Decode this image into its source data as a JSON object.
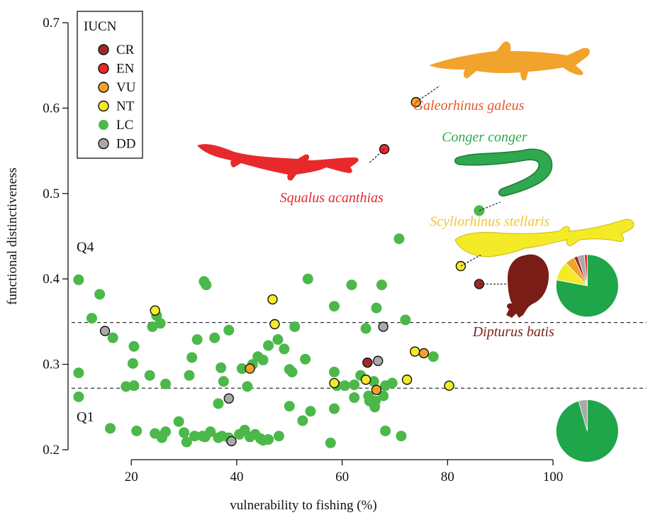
{
  "chart_data": {
    "type": "scatter",
    "xlabel": "vulnerability to fishing (%)",
    "ylabel": "functional distinctiveness",
    "xlim": [
      8,
      100
    ],
    "ylim": [
      0.19,
      0.71
    ],
    "xticks": [
      20,
      40,
      60,
      80,
      100
    ],
    "yticks": [
      0.2,
      0.3,
      0.4,
      0.5,
      0.6,
      0.7
    ],
    "xtick_labels": [
      "20",
      "40",
      "60",
      "80",
      "100"
    ],
    "ytick_labels": [
      "0.2",
      "0.3",
      "0.4",
      "0.5",
      "0.6",
      "0.7"
    ],
    "thresholds": [
      0.349,
      0.272
    ],
    "quadrant_labels": [
      {
        "text": "Q4",
        "y": 0.432
      },
      {
        "text": "Q1",
        "y": 0.233
      }
    ],
    "legend": {
      "title": "IUCN",
      "entries": [
        {
          "label": "CR",
          "color": "#9e2a25",
          "outline": true
        },
        {
          "label": "EN",
          "color": "#e8292c",
          "outline": true
        },
        {
          "label": "VU",
          "color": "#f2a32b",
          "outline": true
        },
        {
          "label": "NT",
          "color": "#f4ea27",
          "outline": true
        },
        {
          "label": "LC",
          "color": "#4bb849",
          "outline": false
        },
        {
          "label": "DD",
          "color": "#a9a9a9",
          "outline": true
        }
      ]
    },
    "colors": {
      "CR": "#9e2a25",
      "EN": "#e8292c",
      "VU": "#f2a32b",
      "NT": "#f4ea27",
      "LC": "#4bb849",
      "DD": "#a9a9a9"
    },
    "series": [
      {
        "name": "CR",
        "points": [
          [
            86,
            0.394
          ],
          [
            64.8,
            0.302
          ]
        ]
      },
      {
        "name": "EN",
        "points": [
          [
            68,
            0.552
          ]
        ]
      },
      {
        "name": "VU",
        "points": [
          [
            74,
            0.607
          ],
          [
            42.5,
            0.295
          ],
          [
            66.5,
            0.27
          ],
          [
            75.5,
            0.313
          ]
        ]
      },
      {
        "name": "NT",
        "points": [
          [
            82.5,
            0.415
          ],
          [
            24.5,
            0.363
          ],
          [
            46.8,
            0.376
          ],
          [
            47.2,
            0.347
          ],
          [
            58.5,
            0.278
          ],
          [
            64.5,
            0.282
          ],
          [
            73.8,
            0.315
          ],
          [
            72.3,
            0.282
          ],
          [
            80.3,
            0.275
          ]
        ]
      },
      {
        "name": "LC",
        "points": [
          [
            86,
            0.48
          ],
          [
            70.8,
            0.447
          ],
          [
            10,
            0.399
          ],
          [
            14,
            0.382
          ],
          [
            12.5,
            0.354
          ],
          [
            16.5,
            0.331
          ],
          [
            10,
            0.29
          ],
          [
            10,
            0.262
          ],
          [
            20.5,
            0.321
          ],
          [
            20.3,
            0.301
          ],
          [
            19,
            0.274
          ],
          [
            20.5,
            0.275
          ],
          [
            23.5,
            0.287
          ],
          [
            24.8,
            0.357
          ],
          [
            25.5,
            0.348
          ],
          [
            24,
            0.344
          ],
          [
            26.5,
            0.277
          ],
          [
            31.5,
            0.308
          ],
          [
            32.5,
            0.329
          ],
          [
            31,
            0.287
          ],
          [
            33.8,
            0.397
          ],
          [
            34.2,
            0.393
          ],
          [
            35.8,
            0.331
          ],
          [
            36.5,
            0.254
          ],
          [
            37,
            0.296
          ],
          [
            37.5,
            0.28
          ],
          [
            38.5,
            0.34
          ],
          [
            41,
            0.295
          ],
          [
            42,
            0.274
          ],
          [
            43,
            0.3
          ],
          [
            44,
            0.309
          ],
          [
            45,
            0.305
          ],
          [
            46,
            0.322
          ],
          [
            47.8,
            0.329
          ],
          [
            49,
            0.318
          ],
          [
            50,
            0.294
          ],
          [
            50.5,
            0.291
          ],
          [
            51,
            0.344
          ],
          [
            50,
            0.251
          ],
          [
            53,
            0.306
          ],
          [
            53.5,
            0.4
          ],
          [
            52.5,
            0.234
          ],
          [
            54,
            0.245
          ],
          [
            58.5,
            0.368
          ],
          [
            58.5,
            0.291
          ],
          [
            59,
            0.275
          ],
          [
            58.5,
            0.248
          ],
          [
            60.5,
            0.275
          ],
          [
            61.8,
            0.393
          ],
          [
            62.3,
            0.276
          ],
          [
            62.3,
            0.261
          ],
          [
            63.5,
            0.287
          ],
          [
            64.5,
            0.342
          ],
          [
            65,
            0.263
          ],
          [
            65.2,
            0.257
          ],
          [
            66,
            0.28
          ],
          [
            66.5,
            0.366
          ],
          [
            66.3,
            0.257
          ],
          [
            66.2,
            0.25
          ],
          [
            67.5,
            0.393
          ],
          [
            67.8,
            0.263
          ],
          [
            68.2,
            0.275
          ],
          [
            68.2,
            0.222
          ],
          [
            69.5,
            0.278
          ],
          [
            71.2,
            0.216
          ],
          [
            72,
            0.352
          ],
          [
            77.3,
            0.309
          ],
          [
            57.8,
            0.208
          ],
          [
            16,
            0.225
          ],
          [
            21,
            0.222
          ],
          [
            24.5,
            0.219
          ],
          [
            25.8,
            0.214
          ],
          [
            26.5,
            0.221
          ],
          [
            29,
            0.233
          ],
          [
            30,
            0.22
          ],
          [
            30.5,
            0.209
          ],
          [
            32,
            0.216
          ],
          [
            33.5,
            0.216
          ],
          [
            34,
            0.215
          ],
          [
            35,
            0.221
          ],
          [
            36.5,
            0.214
          ],
          [
            37.2,
            0.216
          ],
          [
            38.5,
            0.214
          ],
          [
            40.5,
            0.218
          ],
          [
            41.5,
            0.223
          ],
          [
            42.5,
            0.215
          ],
          [
            43.5,
            0.218
          ],
          [
            44.5,
            0.213
          ],
          [
            45,
            0.211
          ],
          [
            46,
            0.212
          ],
          [
            48,
            0.216
          ]
        ]
      },
      {
        "name": "DD",
        "points": [
          [
            15,
            0.339
          ],
          [
            67.8,
            0.344
          ],
          [
            66.8,
            0.304
          ],
          [
            38.5,
            0.26
          ],
          [
            39,
            0.21
          ]
        ]
      }
    ],
    "callouts": [
      {
        "label": "Galeorhinus galeus",
        "color": "#e8562a",
        "point": [
          74,
          0.607
        ],
        "text_pos": [
          84,
          0.598
        ],
        "lead_to": [
          78.5,
          0.626
        ]
      },
      {
        "label": "Squalus acanthias",
        "color": "#e8292c",
        "point": [
          68,
          0.552
        ],
        "text_pos": [
          58,
          0.49
        ],
        "lead_to": [
          65,
          0.535
        ]
      },
      {
        "label": "Conger conger",
        "color": "#2fa84f",
        "point": [
          86,
          0.48
        ],
        "text_pos": [
          87,
          0.561
        ],
        "lead_to": [
          90,
          0.49
        ]
      },
      {
        "label": "Scyliorhinus stellaris",
        "color": "#efc632",
        "point": [
          82.5,
          0.415
        ],
        "text_pos": [
          88,
          0.462
        ],
        "lead_to": [
          86.3,
          0.428
        ]
      },
      {
        "label": "Dipturus batis",
        "color": "#7a2318",
        "point": [
          86,
          0.394
        ],
        "text_pos": [
          92.5,
          0.333
        ],
        "lead_to": [
          91.3,
          0.394
        ]
      }
    ],
    "pies": [
      {
        "quadrant": "Q4",
        "center": [
          106.5,
          0.392
        ],
        "slices": [
          {
            "category": "LC",
            "fraction": 0.78
          },
          {
            "category": "NT",
            "fraction": 0.1
          },
          {
            "category": "VU",
            "fraction": 0.05
          },
          {
            "category": "CR",
            "fraction": 0.02
          },
          {
            "category": "DD",
            "fraction": 0.035
          },
          {
            "category": "EN",
            "fraction": 0.015
          }
        ]
      },
      {
        "quadrant": "Q1",
        "center": [
          106.5,
          0.222
        ],
        "slices": [
          {
            "category": "LC",
            "fraction": 0.955
          },
          {
            "category": "DD",
            "fraction": 0.045
          }
        ]
      }
    ]
  }
}
